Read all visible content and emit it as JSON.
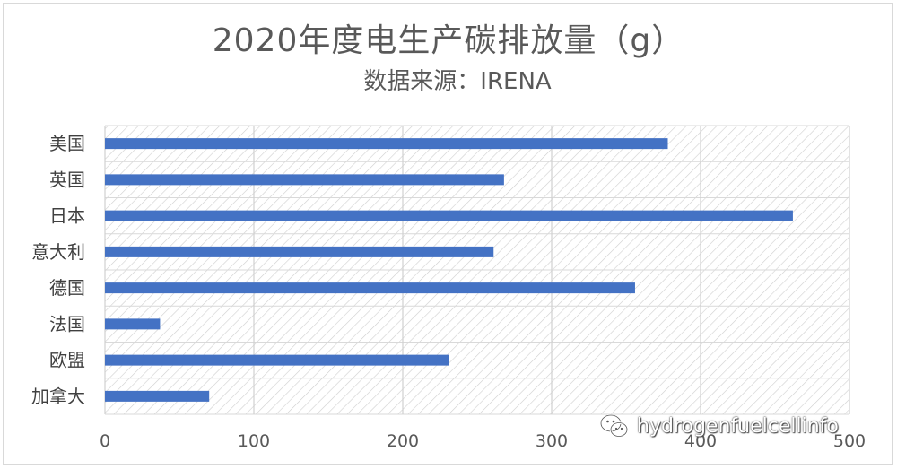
{
  "chart_data": {
    "type": "bar",
    "orientation": "horizontal",
    "title": "2020年度电生产碳排放量（g）",
    "subtitle": "数据来源：IRENA",
    "categories": [
      "美国",
      "英国",
      "日本",
      "意大利",
      "德国",
      "法国",
      "欧盟",
      "加拿大"
    ],
    "values": [
      378,
      268,
      462,
      261,
      356,
      37,
      231,
      70
    ],
    "x_ticks": [
      "0",
      "100",
      "200",
      "300",
      "400",
      "500"
    ],
    "xlim": [
      0,
      500
    ],
    "grid": "vertical",
    "legend": "none",
    "bar_color": "#4472c4"
  },
  "watermark": {
    "text": "hydrogenfuelcellinfo",
    "icon": "wechat-icon"
  }
}
